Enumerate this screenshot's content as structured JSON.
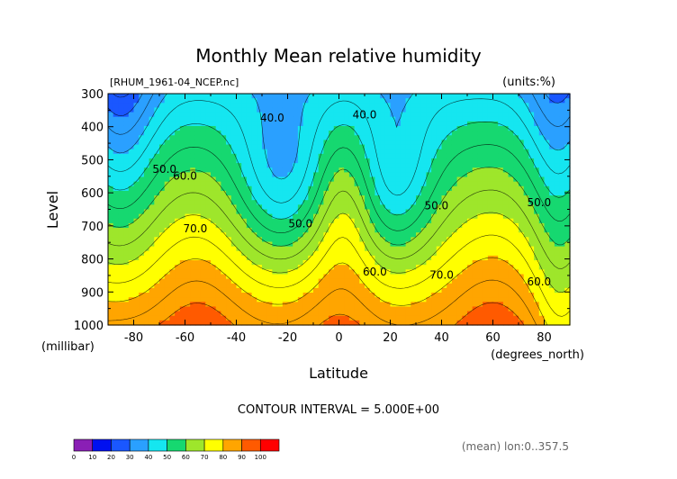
{
  "chart_data": {
    "type": "contour",
    "title": "Monthly Mean relative humidity",
    "subtitle": "[RHUM_1961-04_NCEP.nc]",
    "units_label": "(units:%)",
    "xlabel": "Latitude",
    "x_unit_label": "(degrees_north)",
    "ylabel": "Level",
    "y_unit_label": "(millibar)",
    "xlim": [
      -90,
      90
    ],
    "ylim": [
      1000,
      300
    ],
    "x_ticks": [
      -80,
      -60,
      -40,
      -20,
      0,
      20,
      40,
      60,
      80
    ],
    "y_ticks": [
      300,
      400,
      500,
      600,
      700,
      800,
      900,
      1000
    ],
    "contour_interval_text": "CONTOUR INTERVAL = 5.000E+00",
    "footer_note": "(mean) lon:0..357.5",
    "contour_labels": [
      {
        "text": "40.0",
        "lat": -26,
        "p": 385
      },
      {
        "text": "40.0",
        "lat": 10,
        "p": 375
      },
      {
        "text": "50.0",
        "lat": -68,
        "p": 540
      },
      {
        "text": "60.0",
        "lat": -60,
        "p": 560
      },
      {
        "text": "70.0",
        "lat": -56,
        "p": 720
      },
      {
        "text": "50.0",
        "lat": -15,
        "p": 705
      },
      {
        "text": "50.0",
        "lat": 38,
        "p": 650
      },
      {
        "text": "60.0",
        "lat": 14,
        "p": 850
      },
      {
        "text": "70.0",
        "lat": 40,
        "p": 860
      },
      {
        "text": "50.0",
        "lat": 78,
        "p": 640
      },
      {
        "text": "60.0",
        "lat": 78,
        "p": 880
      }
    ],
    "colorbar": {
      "levels": [
        0,
        10,
        20,
        30,
        40,
        50,
        60,
        70,
        80,
        90,
        100
      ],
      "colors": [
        "#8a1fb5",
        "#0010f0",
        "#1a57ff",
        "#2aa0ff",
        "#15e6f0",
        "#16d870",
        "#9ee62b",
        "#ffff00",
        "#ffa500",
        "#ff5a00",
        "#ff0000"
      ]
    }
  }
}
